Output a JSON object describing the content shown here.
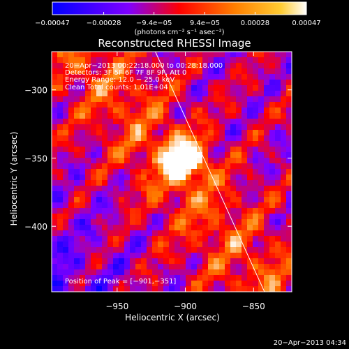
{
  "chart_data": {
    "type": "heatmap",
    "title": "Reconstructed RHESSI Image",
    "xlabel": "Heliocentric X (arcsec)",
    "ylabel": "Heliocentric Y (arcsec)",
    "xlim": [
      -998,
      -822
    ],
    "ylim": [
      -448,
      -272
    ],
    "x_ticks": [
      {
        "value": -950,
        "label": "−950"
      },
      {
        "value": -900,
        "label": "−900"
      },
      {
        "value": -850,
        "label": "−850"
      }
    ],
    "y_ticks": [
      {
        "value": -300,
        "label": "−300"
      },
      {
        "value": -350,
        "label": "−350"
      },
      {
        "value": -400,
        "label": "−400"
      }
    ],
    "colorbar": {
      "min": -0.00047,
      "max": 0.00047,
      "tick_values": [
        -0.00047,
        -0.00028,
        -9.4e-05,
        9.4e-05,
        0.00028,
        0.00047
      ],
      "tick_labels": [
        "−0.00047",
        "−0.00028",
        "−9.4e−05",
        "9.4e−05",
        "0.00028",
        "0.00047"
      ],
      "units": "(photons cm⁻² s⁻¹ asec⁻²)"
    },
    "info_lines": [
      "20−Apr−2013 00:22:18.000 to 00:28:18.000",
      "Detectors: 3F 5F 6F 7F 8F 9F, Att 0",
      "Energy Range: 12.0 − 25.0 keV",
      "Clean     Total counts: 1.01E+04"
    ],
    "peak_label": "Position of Peak = [−901,−351]",
    "peak": {
      "x": -901,
      "y": -351
    },
    "limb_line": [
      {
        "x": -922,
        "y": -272
      },
      {
        "x": -842,
        "y": -448
      }
    ],
    "colormap": [
      "#0000ff",
      "#7f00ff",
      "#ff0000",
      "#ff8000",
      "#ffffff"
    ],
    "background_color": "#000000",
    "image_shape": "mottled background of alternating purple (low) and orange/red (high) blobs; stronger emission band running diagonally from upper-left to lower-right along the limb; dark purple region in lower-left; brightest white-yellow kernel at the peak"
  },
  "timestamp": "20−Apr−2013 04:34"
}
